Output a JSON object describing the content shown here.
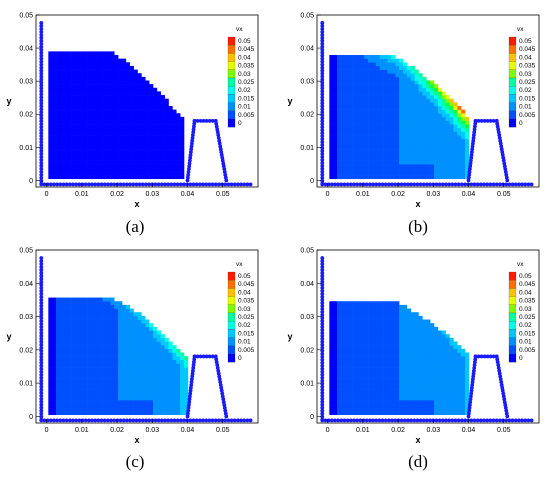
{
  "palette": [
    "#0000ff",
    "#0050ff",
    "#0090ff",
    "#00c8ff",
    "#00ffe6",
    "#00ffa0",
    "#00ff50",
    "#80ff00",
    "#e6ff00",
    "#ffc000",
    "#ff7000",
    "#ff1a00"
  ],
  "boundary_color": "#1a1aff",
  "chart_data": [
    {
      "type": "heatmap",
      "panel": "(a)",
      "xlabel": "x",
      "ylabel": "y",
      "xticks": [
        "0",
        "0.01",
        "0.02",
        "0.03",
        "0.04",
        "0.05"
      ],
      "yticks": [
        "0",
        "0.01",
        "0.02",
        "0.03",
        "0.04",
        "0.05"
      ],
      "xlim": [
        -0.003,
        0.06
      ],
      "ylim": [
        -0.002,
        0.05
      ],
      "legend": {
        "title": "vx",
        "levels": [
          "0.05",
          "0.045",
          "0.04",
          "0.035",
          "0.03",
          "0.025",
          "0.02",
          "0.015",
          "0.01",
          "0.005",
          "0"
        ],
        "position": "top-right"
      },
      "fluid_top": 0.038,
      "front_x": 0.038,
      "front_y": 0.018,
      "max_level": 0
    },
    {
      "type": "heatmap",
      "panel": "(b)",
      "xlabel": "x",
      "ylabel": "y",
      "xticks": [
        "0",
        "0.01",
        "0.02",
        "0.03",
        "0.04",
        "0.05"
      ],
      "yticks": [
        "0",
        "0.01",
        "0.02",
        "0.03",
        "0.04",
        "0.05"
      ],
      "xlim": [
        -0.003,
        0.06
      ],
      "ylim": [
        -0.002,
        0.05
      ],
      "legend": {
        "title": "vx",
        "levels": [
          "0.05",
          "0.045",
          "0.04",
          "0.035",
          "0.03",
          "0.025",
          "0.02",
          "0.015",
          "0.01",
          "0.005",
          "0"
        ],
        "position": "top-right"
      },
      "fluid_top": 0.037,
      "front_x": 0.04,
      "front_y": 0.018,
      "max_level": 11
    },
    {
      "type": "heatmap",
      "panel": "(c)",
      "xlabel": "x",
      "ylabel": "y",
      "xticks": [
        "0",
        "0.01",
        "0.02",
        "0.03",
        "0.04",
        "0.05"
      ],
      "yticks": [
        "0",
        "0.01",
        "0.02",
        "0.03",
        "0.04",
        "0.05"
      ],
      "xlim": [
        -0.003,
        0.06
      ],
      "ylim": [
        -0.002,
        0.05
      ],
      "legend": {
        "title": "vx",
        "levels": [
          "0.05",
          "0.045",
          "0.04",
          "0.035",
          "0.03",
          "0.025",
          "0.02",
          "0.015",
          "0.01",
          "0.005",
          "0"
        ],
        "position": "top-right"
      },
      "fluid_top": 0.035,
      "front_x": 0.039,
      "front_y": 0.018,
      "max_level": 6
    },
    {
      "type": "heatmap",
      "panel": "(d)",
      "xlabel": "x",
      "ylabel": "y",
      "xticks": [
        "0",
        "0.01",
        "0.02",
        "0.03",
        "0.04",
        "0.05"
      ],
      "yticks": [
        "0",
        "0.01",
        "0.02",
        "0.03",
        "0.04",
        "0.05"
      ],
      "xlim": [
        -0.003,
        0.06
      ],
      "ylim": [
        -0.002,
        0.05
      ],
      "legend": {
        "title": "vx",
        "levels": [
          "0.05",
          "0.045",
          "0.04",
          "0.035",
          "0.03",
          "0.025",
          "0.02",
          "0.015",
          "0.01",
          "0.005",
          "0"
        ],
        "position": "top-right"
      },
      "fluid_top": 0.034,
      "front_x": 0.04,
      "front_y": 0.018,
      "max_level": 4
    }
  ]
}
